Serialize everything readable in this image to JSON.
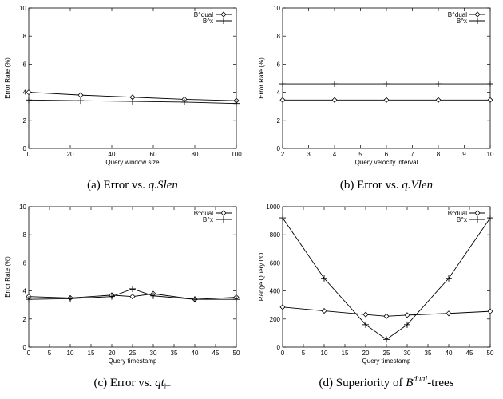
{
  "chart_data": [
    {
      "type": "line",
      "panel": "a",
      "caption": "(a) Error vs. q.Slen",
      "caption_plain": "(a) Error vs. ",
      "caption_math": "q.Slen",
      "xlabel": "Query window size",
      "ylabel": "Error Rate (%)",
      "xlim": [
        0,
        100
      ],
      "ylim": [
        0,
        10
      ],
      "xticks": [
        0,
        20,
        40,
        60,
        80,
        100
      ],
      "yticks": [
        0,
        2,
        4,
        6,
        8,
        10
      ],
      "legend_position": "top-right",
      "series": [
        {
          "name": "B^dual",
          "marker": "diamond",
          "x": [
            0,
            25,
            50,
            75,
            100
          ],
          "y": [
            4.0,
            3.8,
            3.65,
            3.5,
            3.4
          ]
        },
        {
          "name": "B^x",
          "marker": "plus",
          "x": [
            0,
            25,
            50,
            75,
            100
          ],
          "y": [
            3.45,
            3.4,
            3.35,
            3.3,
            3.2
          ]
        }
      ]
    },
    {
      "type": "line",
      "panel": "b",
      "caption": "(b) Error vs. q.Vlen",
      "caption_plain": "(b) Error vs. ",
      "caption_math": "q.Vlen",
      "xlabel": "Query velocity interval",
      "ylabel": "Error Rate (%)",
      "xlim": [
        2,
        10
      ],
      "ylim": [
        0,
        10
      ],
      "xticks": [
        2,
        3,
        4,
        5,
        6,
        7,
        8,
        9,
        10
      ],
      "yticks": [
        0,
        2,
        4,
        6,
        8,
        10
      ],
      "legend_position": "top-right",
      "series": [
        {
          "name": "B^dual",
          "marker": "diamond",
          "x": [
            2,
            4,
            6,
            8,
            10
          ],
          "y": [
            3.45,
            3.45,
            3.45,
            3.45,
            3.45
          ]
        },
        {
          "name": "B^x",
          "marker": "plus",
          "x": [
            2,
            4,
            6,
            8,
            10
          ],
          "y": [
            4.6,
            4.6,
            4.6,
            4.6,
            4.6
          ]
        }
      ]
    },
    {
      "type": "line",
      "panel": "c",
      "caption": "(c) Error vs. qt⊢",
      "caption_plain": "(c) Error vs. ",
      "caption_math": "qt",
      "caption_sub": "⊢",
      "xlabel": "Query timestamp",
      "ylabel": "Error Rate (%)",
      "xlim": [
        0,
        50
      ],
      "ylim": [
        0,
        10
      ],
      "xticks": [
        0,
        5,
        10,
        15,
        20,
        25,
        30,
        35,
        40,
        45,
        50
      ],
      "yticks": [
        0,
        2,
        4,
        6,
        8,
        10
      ],
      "legend_position": "top-right",
      "series": [
        {
          "name": "B^dual",
          "marker": "diamond",
          "x": [
            0,
            10,
            20,
            25,
            30,
            40,
            50
          ],
          "y": [
            3.6,
            3.5,
            3.7,
            3.6,
            3.8,
            3.4,
            3.55
          ]
        },
        {
          "name": "B^x",
          "marker": "plus",
          "x": [
            0,
            10,
            20,
            25,
            30,
            40,
            50
          ],
          "y": [
            3.4,
            3.45,
            3.6,
            4.15,
            3.65,
            3.4,
            3.4
          ]
        }
      ]
    },
    {
      "type": "line",
      "panel": "d",
      "caption": "(d) Superiority of B^dual-trees",
      "caption_plain": "(d) Superiority of ",
      "caption_math": "B",
      "caption_sup": "dual",
      "caption_tail": "-trees",
      "xlabel": "Query timestamp",
      "ylabel": "Range Query I/O",
      "xlim": [
        0,
        50
      ],
      "ylim": [
        0,
        1000
      ],
      "xticks": [
        0,
        5,
        10,
        15,
        20,
        25,
        30,
        35,
        40,
        45,
        50
      ],
      "yticks": [
        0,
        200,
        400,
        600,
        800,
        1000
      ],
      "legend_position": "top-right",
      "series": [
        {
          "name": "B^dual",
          "marker": "diamond",
          "x": [
            0,
            10,
            20,
            25,
            30,
            40,
            50
          ],
          "y": [
            285,
            258,
            232,
            220,
            228,
            240,
            255
          ]
        },
        {
          "name": "B^x",
          "marker": "plus",
          "x": [
            0,
            10,
            20,
            25,
            30,
            40,
            50
          ],
          "y": [
            920,
            490,
            160,
            55,
            160,
            490,
            920
          ]
        }
      ]
    }
  ]
}
